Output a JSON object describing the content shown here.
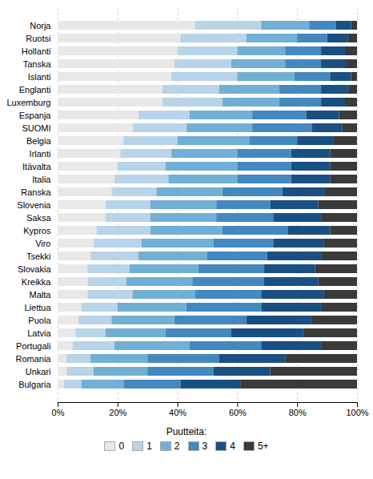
{
  "chart_data": {
    "type": "bar",
    "orientation": "horizontal",
    "stacked": true,
    "categories": [
      "Norja",
      "Ruotsi",
      "Hollanti",
      "Tanska",
      "Islanti",
      "Englanti",
      "Luxemburg",
      "Espanja",
      "SUOMI",
      "Belgia",
      "Irlanti",
      "Itävalta",
      "Italia",
      "Ranska",
      "Slovenia",
      "Saksa",
      "Kypros",
      "Viro",
      "Tsekki",
      "Slovakia",
      "Kreikka",
      "Malta",
      "Liettua",
      "Puola",
      "Latvia",
      "Portugali",
      "Romania",
      "Unkari",
      "Bulgaria"
    ],
    "series": [
      {
        "name": "0",
        "color": "#e8e8e8",
        "values": [
          46,
          41,
          40,
          39,
          38,
          35,
          35,
          27,
          25,
          22,
          21,
          20,
          19,
          18,
          16,
          16,
          13,
          12,
          11,
          10,
          10,
          10,
          8,
          7,
          6,
          5,
          3,
          3,
          2
        ]
      },
      {
        "name": "1",
        "color": "#b8d4e8",
        "values": [
          22,
          22,
          20,
          19,
          22,
          19,
          20,
          17,
          18,
          18,
          17,
          16,
          18,
          15,
          15,
          15,
          18,
          16,
          16,
          14,
          13,
          15,
          12,
          11,
          10,
          14,
          8,
          9,
          6
        ]
      },
      {
        "name": "2",
        "color": "#72afd4",
        "values": [
          16,
          17,
          16,
          18,
          19,
          20,
          19,
          21,
          22,
          24,
          22,
          24,
          23,
          22,
          22,
          22,
          24,
          24,
          23,
          23,
          22,
          21,
          23,
          21,
          20,
          25,
          19,
          18,
          14
        ]
      },
      {
        "name": "3",
        "color": "#4488c0",
        "values": [
          9,
          10,
          12,
          12,
          12,
          14,
          14,
          18,
          20,
          16,
          18,
          18,
          18,
          20,
          18,
          19,
          22,
          20,
          20,
          22,
          24,
          22,
          25,
          24,
          22,
          24,
          24,
          22,
          19
        ]
      },
      {
        "name": "4",
        "color": "#1a4f82",
        "values": [
          5,
          7,
          8,
          8,
          7,
          9,
          8,
          11,
          10,
          12,
          13,
          13,
          13,
          14,
          16,
          16,
          14,
          17,
          18,
          17,
          18,
          21,
          20,
          22,
          24,
          20,
          22,
          19,
          20
        ]
      },
      {
        "name": "5+",
        "color": "#3a3a3a",
        "values": [
          2,
          3,
          4,
          4,
          2,
          3,
          4,
          6,
          5,
          8,
          9,
          9,
          9,
          11,
          13,
          12,
          9,
          11,
          12,
          14,
          13,
          11,
          12,
          15,
          18,
          12,
          24,
          29,
          39
        ]
      }
    ],
    "xlabel": "Puutteita:",
    "xlim": [
      0,
      100
    ],
    "xticks": [
      {
        "value": 0,
        "label": "0%"
      },
      {
        "value": 20,
        "label": "20%"
      },
      {
        "value": 40,
        "label": "40%"
      },
      {
        "value": 60,
        "label": "60%"
      },
      {
        "value": 80,
        "label": "80%"
      },
      {
        "value": 100,
        "label": "100%"
      }
    ],
    "grid": true,
    "legend": "bottom"
  }
}
